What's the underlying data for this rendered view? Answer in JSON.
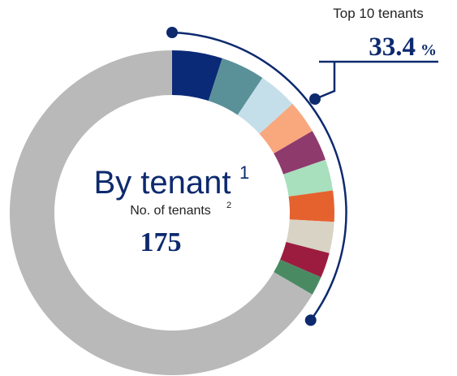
{
  "chart_data": {
    "type": "pie",
    "donut": true,
    "title": "By tenant",
    "title_sup": "1",
    "subtitle": "No. of tenants",
    "subtitle_sup": "2",
    "tenant_count": "175",
    "annotation": {
      "label": "Top 10 tenants",
      "value": "33.4",
      "unit": "%"
    },
    "values": [
      5.0,
      4.4,
      3.9,
      3.3,
      3.1,
      3.1,
      3.1,
      3.1,
      2.5,
      1.9,
      66.6
    ],
    "colors": [
      "#0a2a78",
      "#5a9198",
      "#c5dfea",
      "#f9a77d",
      "#8e3a6d",
      "#a8dfbd",
      "#e5622f",
      "#d8d3c4",
      "#9c1c3f",
      "#4a8a62",
      "#b9b9b9"
    ]
  }
}
